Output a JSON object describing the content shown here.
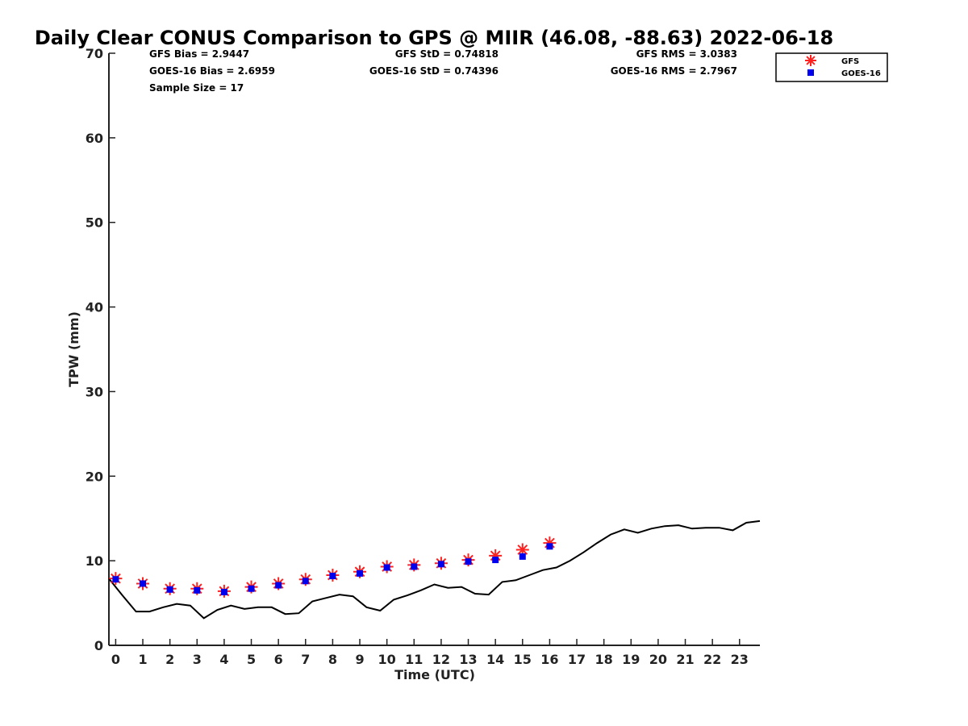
{
  "chart_data": {
    "type": "line",
    "title": "Daily Clear CONUS Comparison to GPS @ MIIR (46.08, -88.63) 2022-06-18",
    "xlabel": "Time (UTC)",
    "ylabel": "TPW (mm)",
    "xlim": [
      -0.25,
      23.75
    ],
    "ylim": [
      0,
      70
    ],
    "x_ticks": [
      "0",
      "1",
      "2",
      "3",
      "4",
      "5",
      "6",
      "7",
      "8",
      "9",
      "10",
      "11",
      "12",
      "13",
      "14",
      "15",
      "16",
      "17",
      "18",
      "19",
      "20",
      "21",
      "22",
      "23"
    ],
    "y_ticks": [
      "0",
      "10",
      "20",
      "30",
      "40",
      "50",
      "60",
      "70"
    ],
    "grid": false,
    "legend": {
      "position": "top-right",
      "entries": [
        "GFS",
        "GOES-16"
      ]
    },
    "stats": [
      {
        "label": "GFS Bias = 2.9447"
      },
      {
        "label": "GFS StD = 0.74818"
      },
      {
        "label": "GFS RMS = 3.0383"
      },
      {
        "label": "GOES-16 Bias = 2.6959"
      },
      {
        "label": "GOES-16 StD = 0.74396"
      },
      {
        "label": "GOES-16 RMS = 2.7967"
      },
      {
        "label": "Sample Size = 17"
      }
    ],
    "series": [
      {
        "name": "GPS",
        "style": "line",
        "color": "#000000",
        "x": [
          -0.25,
          0.25,
          0.75,
          1.25,
          1.75,
          2.25,
          2.75,
          3.25,
          3.75,
          4.25,
          4.75,
          5.25,
          5.75,
          6.25,
          6.75,
          7.25,
          7.75,
          8.25,
          8.75,
          9.25,
          9.75,
          10.25,
          10.75,
          11.25,
          11.75,
          12.25,
          12.75,
          13.25,
          13.75,
          14.25,
          14.75,
          15.25,
          15.75,
          16.25,
          16.75,
          17.25,
          17.75,
          18.25,
          18.75,
          19.25,
          19.75,
          20.25,
          20.75,
          21.25,
          21.75,
          22.25,
          22.75,
          23.25,
          23.75
        ],
        "values": [
          7.9,
          5.9,
          4.0,
          4.0,
          4.5,
          4.9,
          4.7,
          3.2,
          4.2,
          4.7,
          4.3,
          4.5,
          4.5,
          3.7,
          3.8,
          5.2,
          5.6,
          6.0,
          5.8,
          4.5,
          4.1,
          5.4,
          5.9,
          6.5,
          7.2,
          6.8,
          6.9,
          6.1,
          6.0,
          7.5,
          7.7,
          8.3,
          8.9,
          9.2,
          10.0,
          11.0,
          12.1,
          13.1,
          13.7,
          13.3,
          13.8,
          14.1,
          14.2,
          13.8,
          13.9,
          13.9,
          13.6,
          14.5,
          14.7
        ]
      },
      {
        "name": "GFS",
        "style": "marker-star",
        "color": "#ff2020",
        "x": [
          0,
          1,
          2,
          3,
          4,
          5,
          6,
          7,
          8,
          9,
          10,
          11,
          12,
          13,
          14,
          15,
          16
        ],
        "values": [
          7.9,
          7.3,
          6.7,
          6.7,
          6.4,
          6.9,
          7.3,
          7.8,
          8.3,
          8.7,
          9.3,
          9.5,
          9.7,
          10.1,
          10.6,
          11.3,
          12.1
        ]
      },
      {
        "name": "GOES-16",
        "style": "marker-square",
        "color": "#0000ee",
        "x": [
          0,
          1,
          2,
          3,
          4,
          5,
          6,
          7,
          8,
          9,
          10,
          11,
          12,
          13,
          14,
          15,
          16
        ],
        "values": [
          7.8,
          7.3,
          6.6,
          6.5,
          6.3,
          6.7,
          7.1,
          7.6,
          8.2,
          8.5,
          9.2,
          9.3,
          9.6,
          9.9,
          10.1,
          10.5,
          11.7
        ]
      }
    ]
  }
}
